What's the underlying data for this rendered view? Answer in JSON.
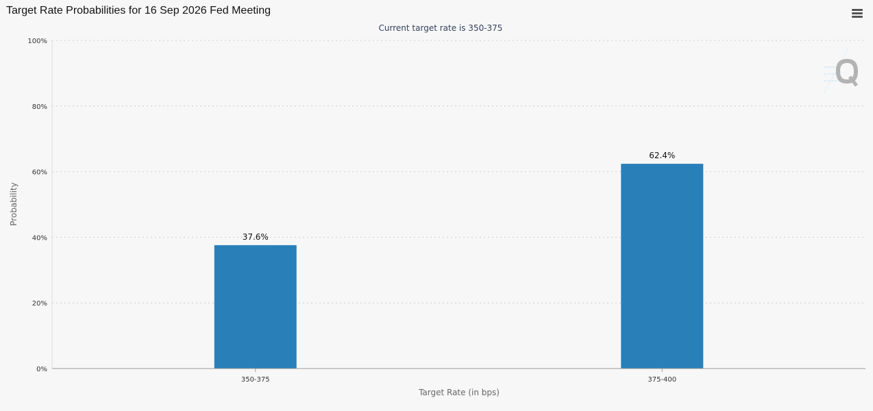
{
  "page": {
    "title": "Target Rate Probabilities for 16 Sep 2026 Fed Meeting",
    "menu_icon": "hamburger-menu-icon",
    "watermark_icon": "q-logo-icon"
  },
  "chart_data": {
    "type": "bar",
    "title": "Target Rate Probabilities for 16 Sep 2026 Fed Meeting",
    "subtitle": "Current target rate is 350-375",
    "xlabel": "Target Rate (in bps)",
    "ylabel": "Probability",
    "categories": [
      "350-375",
      "375-400"
    ],
    "values": [
      37.6,
      62.4
    ],
    "data_labels": [
      "37.6%",
      "62.4%"
    ],
    "ylim": [
      0,
      100
    ],
    "yticks": [
      0,
      20,
      40,
      60,
      80,
      100
    ],
    "ytick_labels": [
      "0%",
      "20%",
      "40%",
      "60%",
      "80%",
      "100%"
    ],
    "grid": true,
    "legend": "none",
    "colors": {
      "bar": "#2980b9",
      "grid": "#cccccc",
      "axis": "#999999",
      "background": "#f7f7f7"
    }
  }
}
